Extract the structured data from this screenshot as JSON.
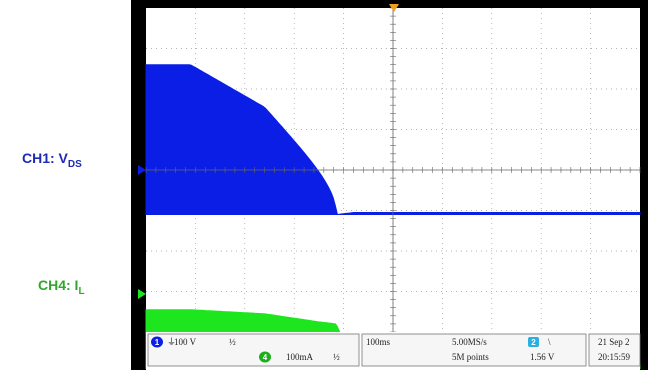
{
  "labels": {
    "ch1_prefix": "CH1: V",
    "ch1_sub": "DS",
    "ch4_prefix": "CH4: I",
    "ch4_sub": "L"
  },
  "status_bar": {
    "ch1_badge": "1",
    "ch1_scale": "100 V",
    "ch1_bw_mark": "½",
    "ch4_badge": "4",
    "ch4_scale": "100mA",
    "ch4_bw_mark": "½",
    "timebase": "100ms",
    "sample_rate": "5.00MS/s",
    "record_length": "5M points",
    "trigger_badge": "2",
    "trigger_slope": "\\",
    "trigger_level": "1.56 V",
    "date": "21 Sep 2",
    "time": "20:15:59"
  },
  "colors": {
    "ch1": "#0a1ee6",
    "ch4": "#1ee61e",
    "frame": "#000000",
    "grid_bg": "#ffffff",
    "trigger_marker": "#f0a020",
    "ch2_badge": "#2ab0e0"
  },
  "chart_data": {
    "type": "line",
    "x": [
      0,
      0.9,
      2.4,
      3.5,
      3.85,
      4.2,
      6.0,
      10
    ],
    "series": [
      {
        "name": "CH1: VDS",
        "values": [
          3.7,
          3.7,
          2.65,
          1.15,
          0,
          0.05,
          0.05,
          0.05
        ]
      },
      {
        "name": "CH4: IL",
        "values": [
          1.45,
          1.45,
          1.35,
          1.15,
          1.1,
          0.1,
          0.1,
          0.1
        ]
      }
    ],
    "divisions_x": 10,
    "divisions_y": 8,
    "grid": true,
    "timebase": "100ms",
    "ch1_scale": "100 V",
    "ch4_scale": "100mA"
  }
}
